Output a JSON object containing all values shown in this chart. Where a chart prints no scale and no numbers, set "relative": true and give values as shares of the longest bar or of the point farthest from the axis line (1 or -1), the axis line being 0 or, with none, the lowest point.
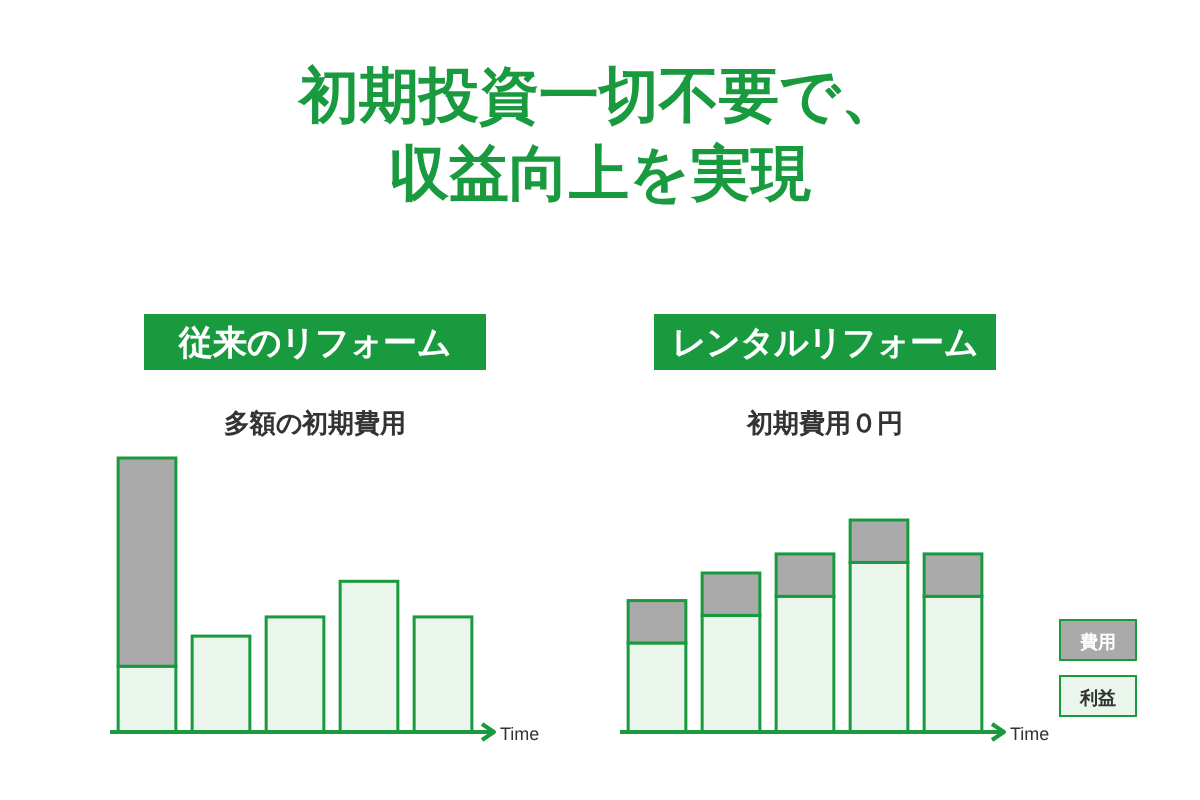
{
  "chart_data": [
    {
      "type": "other",
      "title": "初期投資一切不要で、",
      "subtitle": "収益向上を実現"
    },
    {
      "type": "bar",
      "title": "従来のリフォーム",
      "subtitle": "多額の初期費用",
      "xlabel": "Time",
      "categories": [
        null,
        null,
        null,
        null,
        null
      ],
      "stacked": true,
      "relative": true,
      "series": [
        {
          "color": "#eaf6ec",
          "values": [
            0.24,
            0.35,
            0.42,
            0.55,
            0.42
          ]
        },
        {
          "color": "#aaaaaa",
          "values": [
            0.76,
            null,
            null,
            null,
            null
          ]
        }
      ]
    },
    {
      "type": "bar",
      "title": "レンタルリフォーム",
      "subtitle": "初期費用０円",
      "xlabel": "Time",
      "categories": [
        null,
        null,
        null,
        null,
        null
      ],
      "stacked": true,
      "relative": true,
      "legend": "right",
      "series": [
        {
          "name": "利益",
          "color": "#eaf6ec",
          "values": [
            0.42,
            0.55,
            0.64,
            0.8,
            0.64
          ]
        },
        {
          "name": "費用",
          "color": "#aaaaaa",
          "values": [
            0.2,
            0.2,
            0.2,
            0.2,
            0.2
          ]
        }
      ]
    }
  ]
}
